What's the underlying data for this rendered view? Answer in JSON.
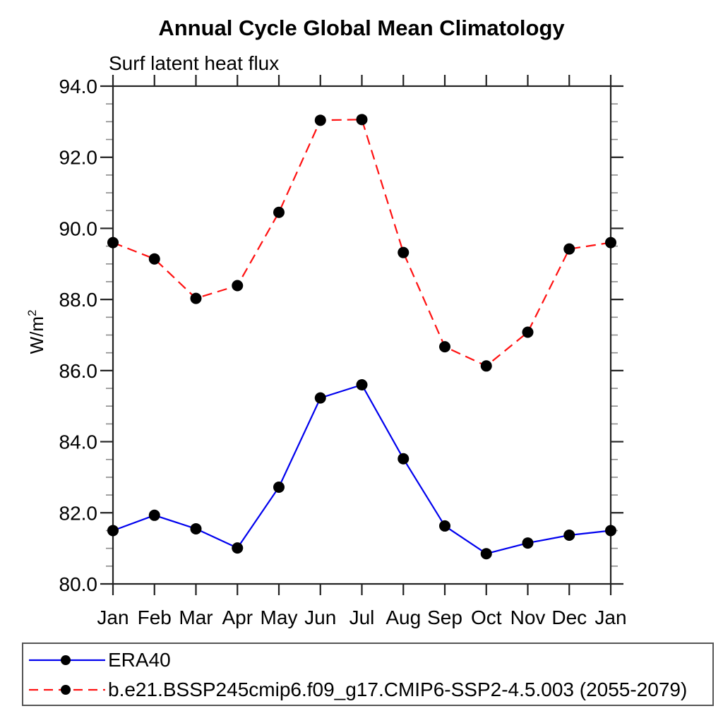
{
  "title": "Annual Cycle Global Mean Climatology",
  "subtitle": "Surf latent heat flux",
  "y_axis": {
    "label_base": "W/m",
    "label_sup": "2",
    "tick_labels": [
      "80.0",
      "82.0",
      "84.0",
      "86.0",
      "88.0",
      "90.0",
      "92.0",
      "94.0"
    ]
  },
  "x_axis": {
    "tick_labels": [
      "Jan",
      "Feb",
      "Mar",
      "Apr",
      "May",
      "Jun",
      "Jul",
      "Aug",
      "Sep",
      "Oct",
      "Nov",
      "Dec",
      "Jan"
    ]
  },
  "colors": {
    "era40_line": "#0000ee",
    "model_line": "#ff1111",
    "marker": "#000000",
    "axis": "#222222",
    "minor_tick": "#8a8a8a"
  },
  "chart_data": {
    "type": "line",
    "title": "Annual Cycle Global Mean Climatology",
    "subtitle": "Surf latent heat flux",
    "ylabel": "W/m²",
    "xlabel": "",
    "x": [
      "Jan",
      "Feb",
      "Mar",
      "Apr",
      "May",
      "Jun",
      "Jul",
      "Aug",
      "Sep",
      "Oct",
      "Nov",
      "Dec",
      "Jan"
    ],
    "ylim": [
      80.0,
      94.0
    ],
    "ytick_step": 2.0,
    "yminor_step": 0.5,
    "ytick_format": "one-decimal",
    "grid": false,
    "legend_position": "bottom-left-box",
    "series": [
      {
        "name": "ERA40",
        "color": "#0000ee",
        "line_style": "solid",
        "marker": "filled-circle",
        "marker_color": "#000000",
        "values": [
          81.5,
          81.93,
          81.55,
          81.01,
          82.72,
          85.23,
          85.6,
          83.52,
          81.63,
          80.85,
          81.15,
          81.37,
          81.5
        ]
      },
      {
        "name": "b.e21.BSSP245cmip6.f09_g17.CMIP6-SSP2-4.5.003 (2055-2079)",
        "color": "#ff1111",
        "line_style": "dashed",
        "marker": "filled-circle",
        "marker_color": "#000000",
        "values": [
          89.6,
          89.14,
          88.03,
          88.39,
          90.45,
          93.04,
          93.06,
          89.32,
          86.67,
          86.13,
          87.08,
          89.42,
          89.6
        ]
      }
    ]
  }
}
